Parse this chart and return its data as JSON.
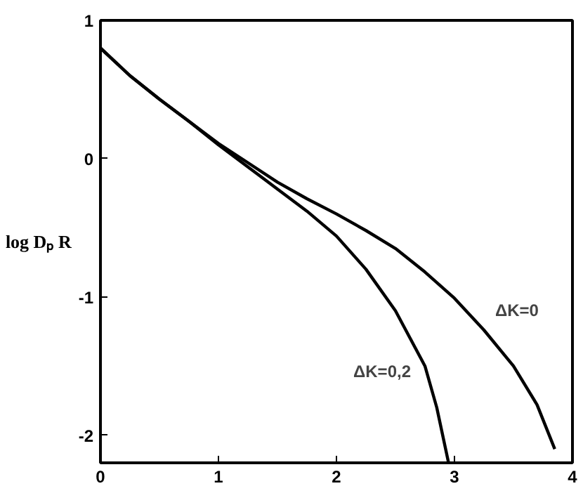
{
  "chart_data": {
    "type": "line",
    "ylabel": "log Dₚ R",
    "xlim": [
      0,
      4
    ],
    "ylim": [
      -2.2,
      1
    ],
    "xticks": [
      0,
      1,
      2,
      3,
      4
    ],
    "yticks": [
      -2,
      -1,
      0,
      1
    ],
    "series": [
      {
        "name": "ΔK=0",
        "color": "#000000",
        "x": [
          0,
          0.25,
          0.5,
          0.75,
          1,
          1.25,
          1.5,
          1.75,
          2,
          2.25,
          2.5,
          2.75,
          3,
          3.25,
          3.5,
          3.7,
          3.85
        ],
        "values": [
          0.8,
          0.6,
          0.43,
          0.27,
          0.11,
          -0.03,
          -0.17,
          -0.29,
          -0.4,
          -0.52,
          -0.65,
          -0.82,
          -1.01,
          -1.24,
          -1.5,
          -1.78,
          -2.1
        ]
      },
      {
        "name": "ΔK=0,2",
        "color": "#000000",
        "x": [
          0,
          0.25,
          0.5,
          0.75,
          1,
          1.25,
          1.5,
          1.75,
          2,
          2.25,
          2.5,
          2.75,
          2.85,
          2.95
        ],
        "values": [
          0.8,
          0.6,
          0.43,
          0.27,
          0.1,
          -0.06,
          -0.22,
          -0.38,
          -0.56,
          -0.8,
          -1.1,
          -1.5,
          -1.8,
          -2.2
        ]
      }
    ],
    "line_style": "solid",
    "grid": false
  }
}
